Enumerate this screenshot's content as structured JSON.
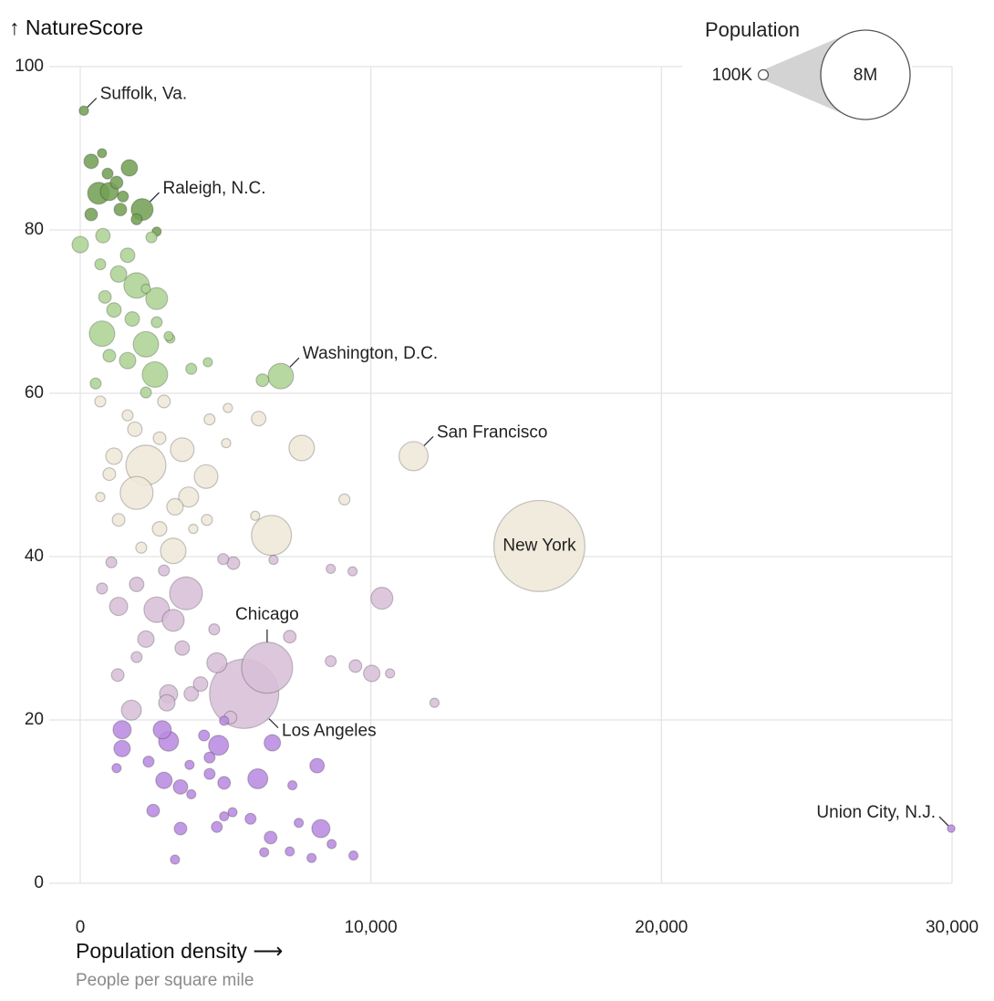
{
  "chart_data": {
    "type": "bubble",
    "y_label": "↑ NatureScore",
    "x_label": "Population density ⟶",
    "x_sublabel": "People per square mile",
    "grid": true,
    "xlim": [
      0,
      30000
    ],
    "xticks": [
      0,
      {
        "value": 10000,
        "label": "10,000"
      },
      {
        "value": 20000,
        "label": "20,000"
      },
      {
        "value": 30000,
        "label": "30,000"
      }
    ],
    "ylim": [
      0,
      100
    ],
    "yticks": [
      0,
      20,
      40,
      60,
      80,
      100
    ],
    "size_legend_title": "Population",
    "size_legend": [
      {
        "value": 100000,
        "label": "100K"
      },
      {
        "value": 8000000,
        "label": "8M"
      }
    ],
    "series": [
      {
        "color": "#74a055",
        "x": [
          630,
          2130,
          1000,
          376,
          1690,
          376,
          1380,
          1250,
          1940,
          940,
          1470,
          750,
          2630,
          125
        ],
        "y": [
          84.5,
          82.5,
          84.7,
          88.4,
          87.6,
          81.9,
          82.5,
          85.8,
          81.3,
          86.9,
          84.1,
          89.4,
          79.8,
          94.6
        ],
        "size": [
          480000,
          480000,
          330000,
          210000,
          270000,
          160000,
          160000,
          160000,
          120000,
          120000,
          120000,
          85000,
          85000,
          90000
        ],
        "labels": [
          null,
          "Raleigh, N.C.",
          null,
          null,
          null,
          null,
          null,
          null,
          null,
          null,
          null,
          null,
          null,
          "Suffolk, Va."
        ]
      },
      {
        "color": "#aed394",
        "x": [
          6900,
          1940,
          750,
          2260,
          2570,
          2630,
          0,
          1320,
          1630,
          780,
          1160,
          1630,
          1790,
          6270,
          1000,
          850,
          3820,
          2450,
          2630,
          530,
          690,
          2260,
          4390,
          3100,
          2260,
          3040
        ],
        "y": [
          62.1,
          73.2,
          67.3,
          66.0,
          62.3,
          71.6,
          78.2,
          74.6,
          64.0,
          79.3,
          70.2,
          76.9,
          69.1,
          61.6,
          64.6,
          71.8,
          63.0,
          79.1,
          68.7,
          61.2,
          75.8,
          60.1,
          63.8,
          66.7,
          72.8,
          67.0
        ],
        "size": [
          650000,
          650000,
          650000,
          650000,
          650000,
          480000,
          270000,
          270000,
          270000,
          210000,
          210000,
          210000,
          210000,
          160000,
          160000,
          160000,
          120000,
          120000,
          120000,
          120000,
          120000,
          120000,
          85000,
          85000,
          85000,
          85000
        ],
        "labels": [
          "Washington, D.C.",
          null,
          null,
          null,
          null,
          null,
          null,
          null,
          null,
          null,
          null,
          null,
          null,
          null,
          null,
          null,
          null,
          null,
          null,
          null,
          null,
          null,
          null,
          null,
          null,
          null
        ]
      },
      {
        "color": "#efe8d8",
        "x": [
          15800,
          6580,
          2260,
          1940,
          11470,
          7620,
          3200,
          4330,
          3510,
          3730,
          3260,
          1160,
          6140,
          1880,
          2730,
          2880,
          1000,
          1320,
          2730,
          9090,
          690,
          4450,
          4360,
          2100,
          1630,
          5080,
          6020,
          5020,
          690,
          3890
        ],
        "y": [
          41.3,
          42.6,
          51.2,
          47.8,
          52.3,
          53.3,
          40.7,
          49.8,
          53.1,
          47.3,
          46.1,
          52.3,
          56.9,
          55.6,
          43.4,
          59.0,
          50.1,
          44.5,
          54.5,
          47.0,
          59.0,
          56.8,
          44.5,
          41.1,
          57.3,
          58.2,
          45.0,
          53.9,
          47.3,
          43.4
        ],
        "size": [
          8300000,
          1600000,
          1600000,
          1080000,
          850000,
          650000,
          650000,
          560000,
          560000,
          400000,
          270000,
          270000,
          210000,
          210000,
          210000,
          160000,
          160000,
          160000,
          160000,
          120000,
          120000,
          120000,
          120000,
          120000,
          120000,
          85000,
          85000,
          85000,
          85000,
          85000
        ],
        "labels": [
          "New York",
          null,
          null,
          null,
          "San Francisco",
          null,
          null,
          null,
          null,
          null,
          null,
          null,
          null,
          null,
          null,
          null,
          null,
          null,
          null,
          null,
          null,
          null,
          null,
          null,
          null,
          null,
          null,
          null,
          null,
          null
        ]
      },
      {
        "color": "#d8bfd8",
        "x": [
          5640,
          6430,
          3640,
          2630,
          10380,
          3200,
          4700,
          1760,
          1320,
          3040,
          10030,
          2980,
          2260,
          3820,
          1940,
          3510,
          4140,
          9470,
          7210,
          5270,
          1290,
          5170,
          8620,
          4610,
          4920,
          1070,
          750,
          2880,
          1940,
          8620,
          9370,
          10660,
          12190,
          6650
        ],
        "y": [
          23.2,
          26.4,
          35.5,
          33.5,
          34.9,
          32.2,
          27.0,
          21.2,
          33.9,
          23.2,
          25.7,
          22.1,
          29.9,
          23.2,
          36.6,
          28.8,
          24.4,
          26.6,
          30.2,
          39.2,
          25.5,
          20.3,
          27.2,
          31.1,
          39.7,
          39.3,
          36.1,
          38.3,
          27.7,
          38.5,
          38.2,
          25.7,
          22.1,
          39.6
        ],
        "size": [
          4800000,
          2600000,
          1080000,
          650000,
          480000,
          480000,
          400000,
          400000,
          330000,
          330000,
          270000,
          270000,
          270000,
          210000,
          210000,
          210000,
          210000,
          160000,
          160000,
          160000,
          160000,
          160000,
          120000,
          120000,
          120000,
          120000,
          120000,
          120000,
          120000,
          85000,
          85000,
          85000,
          85000,
          85000
        ],
        "labels": [
          "Los Angeles",
          "Chicago",
          null,
          null,
          null,
          null,
          null,
          null,
          null,
          null,
          null,
          null,
          null,
          null,
          null,
          null,
          null,
          null,
          null,
          null,
          null,
          null,
          null,
          null,
          null,
          null,
          null,
          null,
          null,
          null,
          null,
          null,
          null,
          null
        ]
      },
      {
        "color": "#b98be0",
        "x": [
          4760,
          6110,
          3040,
          1440,
          2820,
          8280,
          1440,
          6610,
          2880,
          3450,
          8150,
          6550,
          2510,
          3450,
          4950,
          5860,
          4700,
          2350,
          4450,
          4260,
          4450,
          3260,
          7300,
          1250,
          3760,
          4950,
          9400,
          7960,
          7210,
          8650,
          6330,
          5240,
          3820,
          7520,
          4950,
          29970
        ],
        "y": [
          16.9,
          12.8,
          17.4,
          18.8,
          18.8,
          6.7,
          16.5,
          17.2,
          12.6,
          11.8,
          14.4,
          5.6,
          8.9,
          6.7,
          12.3,
          7.9,
          6.9,
          14.9,
          15.4,
          18.1,
          13.4,
          2.9,
          12.0,
          14.1,
          14.5,
          19.9,
          3.4,
          3.1,
          3.9,
          4.8,
          3.8,
          8.7,
          10.9,
          7.4,
          8.2,
          6.7
        ],
        "size": [
          400000,
          400000,
          400000,
          330000,
          330000,
          330000,
          270000,
          270000,
          270000,
          210000,
          210000,
          160000,
          160000,
          160000,
          160000,
          120000,
          120000,
          120000,
          120000,
          120000,
          120000,
          85000,
          85000,
          85000,
          85000,
          85000,
          85000,
          85000,
          85000,
          85000,
          85000,
          85000,
          85000,
          85000,
          85000,
          60000
        ],
        "labels": [
          null,
          null,
          null,
          null,
          null,
          null,
          null,
          null,
          null,
          null,
          null,
          null,
          null,
          null,
          null,
          null,
          null,
          null,
          null,
          null,
          null,
          null,
          null,
          null,
          null,
          null,
          null,
          null,
          null,
          null,
          null,
          null,
          null,
          null,
          null,
          "Union City, N.J."
        ]
      }
    ]
  }
}
